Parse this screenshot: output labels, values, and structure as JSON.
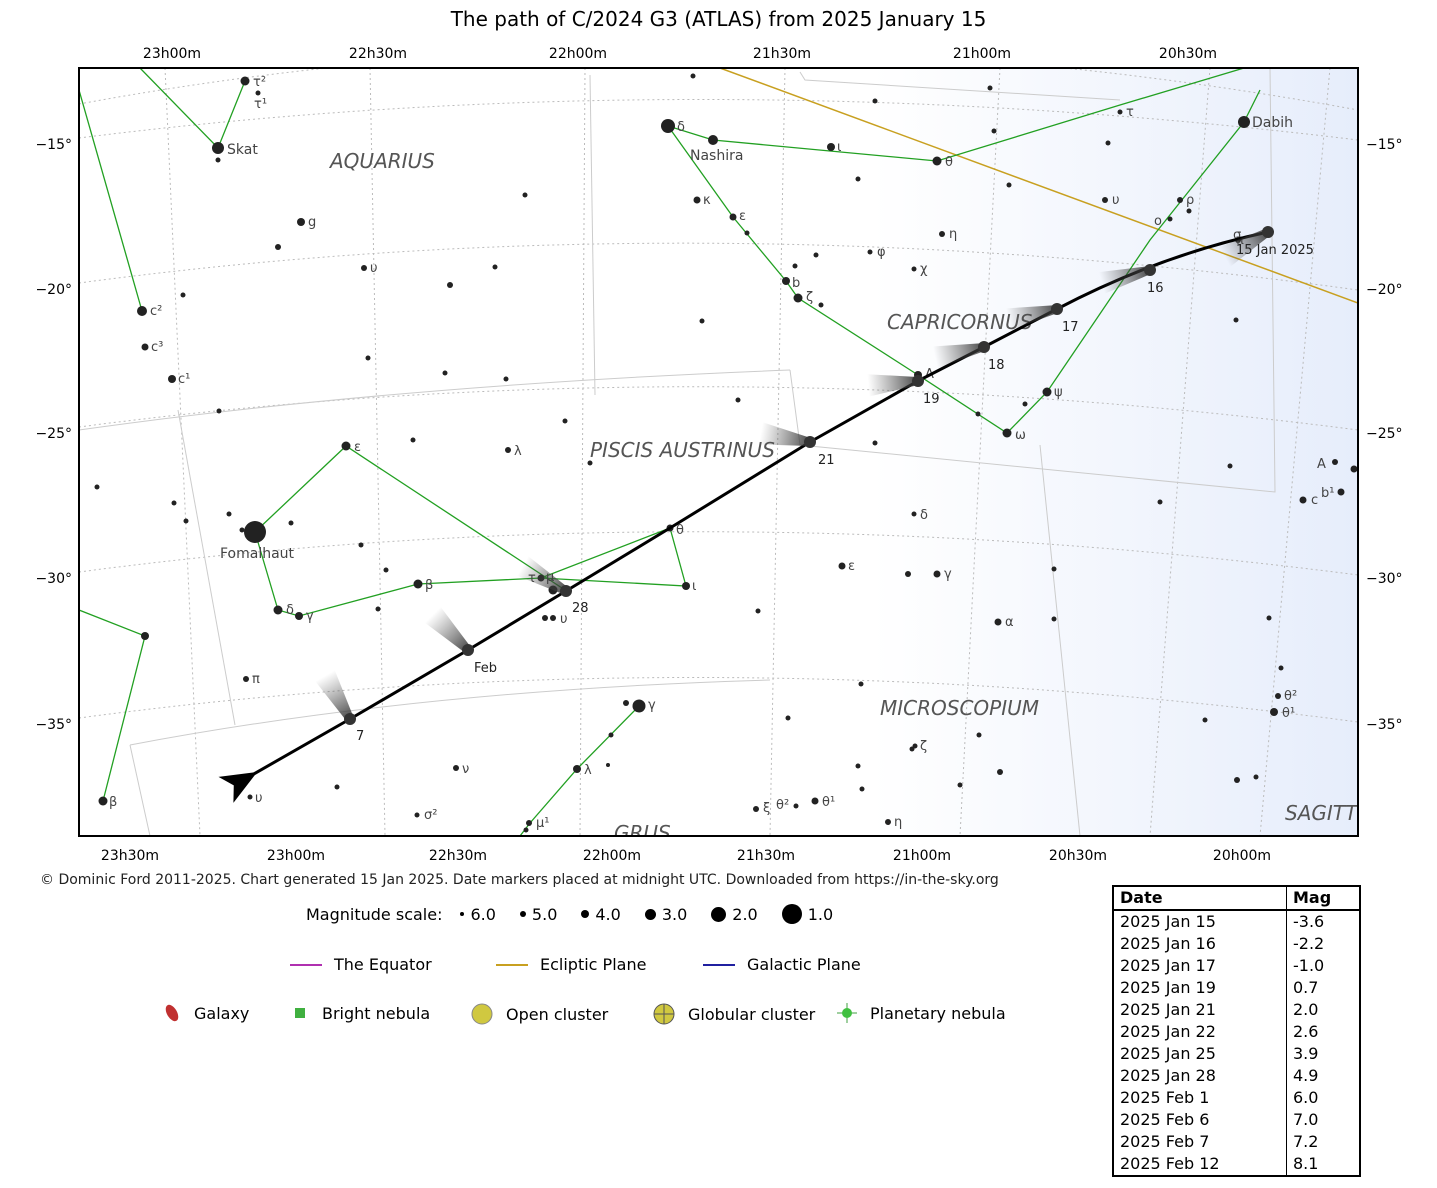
{
  "title": "The path of C/2024 G3 (ATLAS) from 2025 January 15",
  "credit": "© Dominic Ford 2011-2025. Chart generated 15 Jan 2025. Date markers placed at midnight UTC. Downloaded from https://in-the-sky.org",
  "axes": {
    "top_ra": [
      "23h00m",
      "22h30m",
      "22h00m",
      "21h30m",
      "21h00m",
      "20h30m"
    ],
    "bottom_ra": [
      "23h30m",
      "23h00m",
      "22h30m",
      "22h00m",
      "21h30m",
      "21h00m",
      "20h30m",
      "20h00m"
    ],
    "dec_left": [
      "−15°",
      "−20°",
      "−25°",
      "−30°",
      "−35°"
    ],
    "dec_right": [
      "−15°",
      "−20°",
      "−25°",
      "−30°",
      "−35°"
    ]
  },
  "constellations": [
    "AQUARIUS",
    "CAPRICORNUS",
    "PISCIS AUSTRINUS",
    "MICROSCOPIUM",
    "GRUS",
    "SAGITT"
  ],
  "star_labels": [
    "τ²",
    "τ¹",
    "Skat",
    "g",
    "υ",
    "c²",
    "c³",
    "c¹",
    "ε",
    "Fomalhaut",
    "λ",
    "δ",
    "γ",
    "β",
    "π",
    "ν",
    "σ²",
    "μ¹",
    "λ",
    "γ",
    "θ",
    "ι",
    "τ",
    "μ",
    "υ",
    "δ",
    "Nashira",
    "ι",
    "κ",
    "ε",
    "θ",
    "η",
    "φ",
    "χ",
    "b",
    "ζ",
    "A",
    "ψ",
    "ω",
    "δ",
    "ε",
    "γ",
    "α",
    "ζ",
    "ξ",
    "θ²",
    "θ¹",
    "η",
    "Dabih",
    "τ",
    "υ",
    "ρ",
    "ο",
    "π",
    "σ",
    "A",
    "c",
    "b¹",
    "θ²",
    "θ¹",
    "β",
    "υ"
  ],
  "date_markers": [
    "15 Jan 2025",
    "16",
    "17",
    "18",
    "19",
    "21",
    "28",
    "Feb",
    "7"
  ],
  "legend": {
    "mag_label": "Magnitude scale:",
    "mag_items": [
      "6.0",
      "5.0",
      "4.0",
      "3.0",
      "2.0",
      "1.0"
    ],
    "lines": [
      {
        "label": "The Equator",
        "color": "#b030b0"
      },
      {
        "label": "Ecliptic Plane",
        "color": "#c8a020"
      },
      {
        "label": "Galactic Plane",
        "color": "#2020a0"
      }
    ],
    "objects": [
      "Galaxy",
      "Bright nebula",
      "Open cluster",
      "Globular cluster",
      "Planetary nebula"
    ]
  },
  "mag_table": {
    "headers": [
      "Date",
      "Mag"
    ],
    "rows": [
      [
        "2025 Jan 15",
        "-3.6"
      ],
      [
        "2025 Jan 16",
        "-2.2"
      ],
      [
        "2025 Jan 17",
        "-1.0"
      ],
      [
        "2025 Jan 19",
        "0.7"
      ],
      [
        "2025 Jan 21",
        "2.0"
      ],
      [
        "2025 Jan 22",
        "2.6"
      ],
      [
        "2025 Jan 25",
        "3.9"
      ],
      [
        "2025 Jan 28",
        "4.9"
      ],
      [
        "2025 Feb 1",
        "6.0"
      ],
      [
        "2025 Feb 6",
        "7.0"
      ],
      [
        "2025 Feb 7",
        "7.2"
      ],
      [
        "2025 Feb 12",
        "8.1"
      ]
    ]
  }
}
